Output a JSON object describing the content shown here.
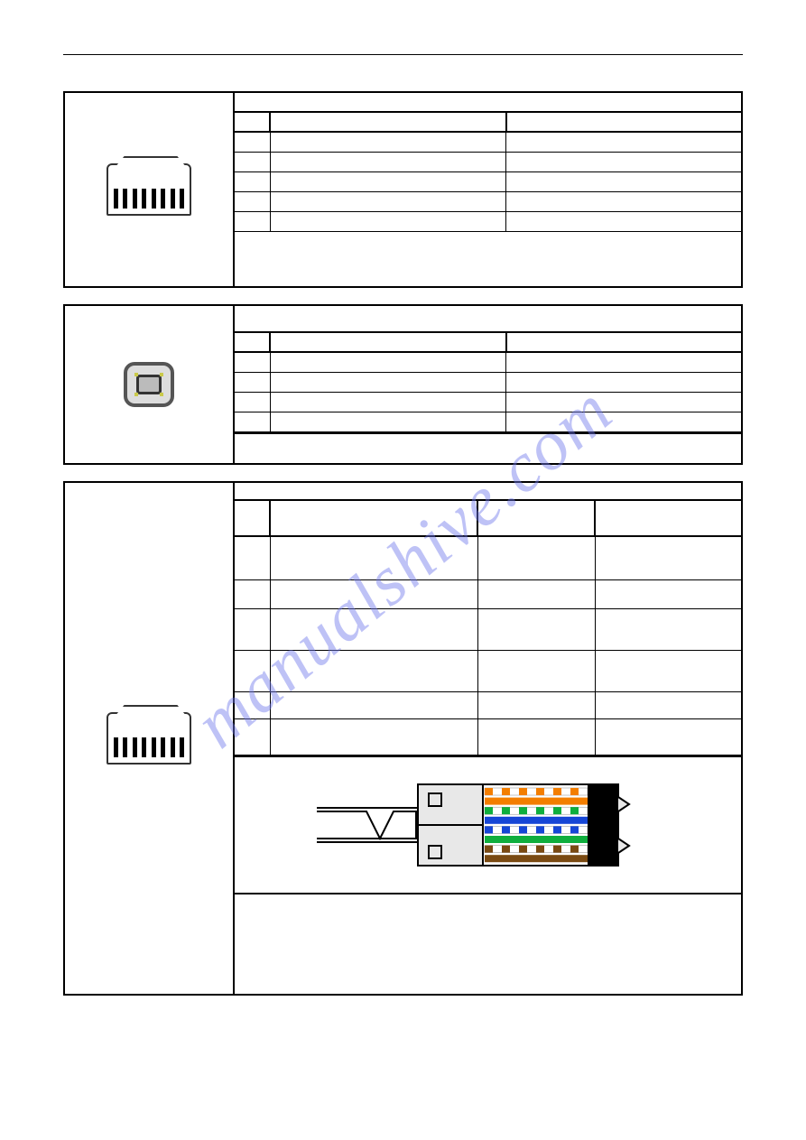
{
  "watermark": "manualshive.com",
  "block1": {
    "title": "",
    "hdr": {
      "pin": "",
      "name": "",
      "desc": ""
    },
    "rows": [
      {
        "pin": "",
        "name": "",
        "desc": ""
      },
      {
        "pin": "",
        "name": "",
        "desc": ""
      },
      {
        "pin": "",
        "name": "",
        "desc": ""
      },
      {
        "pin": "",
        "name": "",
        "desc": ""
      },
      {
        "pin": "",
        "name": "",
        "desc": ""
      }
    ],
    "note": "",
    "icon": "rj45"
  },
  "block2": {
    "title": "",
    "hdr": {
      "pin": "",
      "name": "",
      "desc": ""
    },
    "rows": [
      {
        "pin": "",
        "name": "",
        "desc": ""
      },
      {
        "pin": "",
        "name": "",
        "desc": ""
      },
      {
        "pin": "",
        "name": "",
        "desc": ""
      },
      {
        "pin": "",
        "name": "",
        "desc": ""
      }
    ],
    "note": "",
    "icon": "usb-b"
  },
  "block3": {
    "title": "",
    "hdr": {
      "pin": "",
      "sig": "",
      "dir": "",
      "col": ""
    },
    "rows": [
      {
        "pin": "",
        "sig": "",
        "dir": "",
        "col": "",
        "h": 48
      },
      {
        "pin": "",
        "sig": "",
        "dir": "",
        "col": "",
        "h": 32
      },
      {
        "pin": "",
        "sig": "",
        "dir": "",
        "col": "",
        "h": 46
      },
      {
        "pin": "",
        "sig": "",
        "dir": "",
        "col": "",
        "h": 46
      },
      {
        "pin": "",
        "sig": "",
        "dir": "",
        "col": "",
        "h": 30
      },
      {
        "pin": "",
        "sig": "",
        "dir": "",
        "col": "",
        "h": 40
      }
    ],
    "icon": "rj45",
    "wire_colors": [
      "#ffffff/#f37e00",
      "#f37e00",
      "#ffffff/#0fae3d",
      "#1646d6",
      "#ffffff/#1646d6",
      "#0fae3d",
      "#ffffff/#7a4a12",
      "#7a4a12"
    ],
    "body_fill": "#e8e8e8",
    "pin_color": "#000000",
    "note": ""
  }
}
